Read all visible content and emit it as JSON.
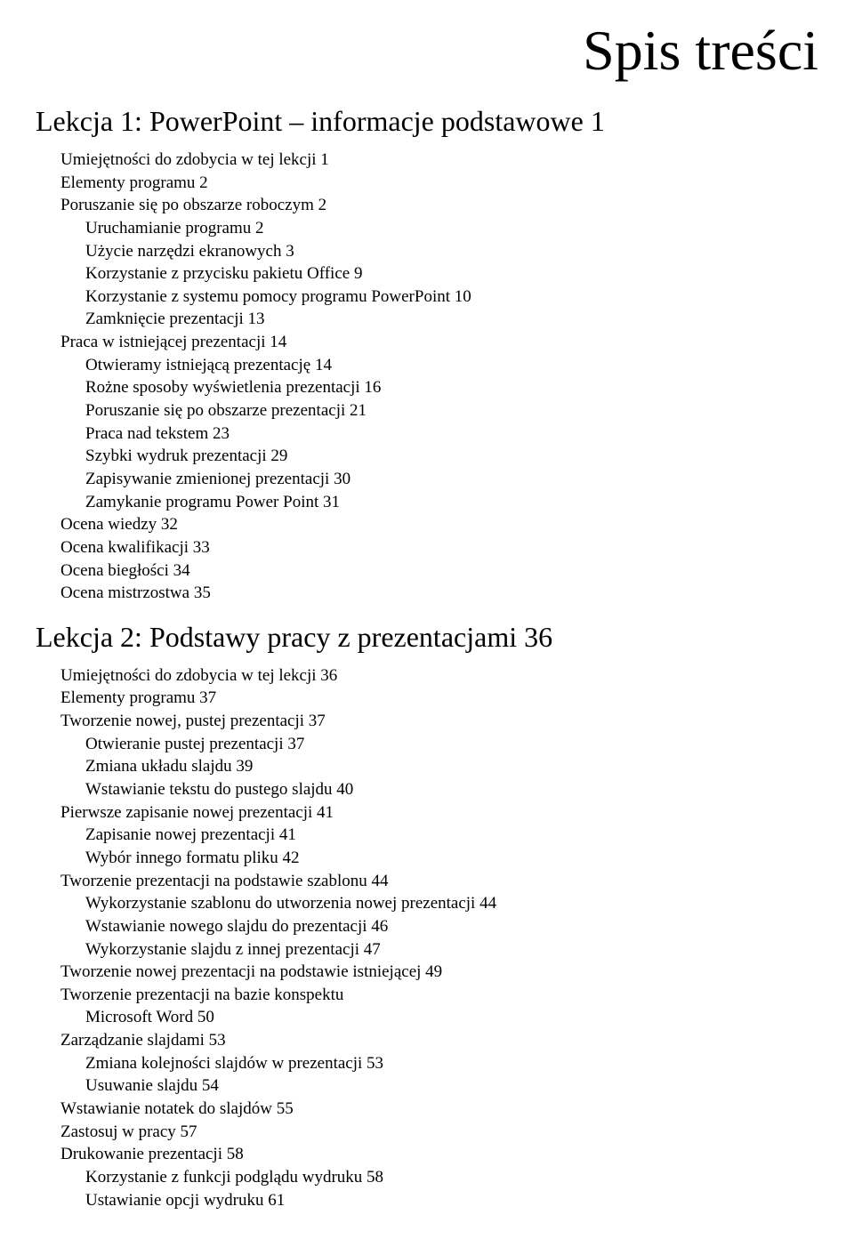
{
  "title": "Spis treści",
  "title_fontsize": 64,
  "lesson_fontsize": 32,
  "entry_fontsize": 19,
  "text_color": "#000000",
  "background_color": "#ffffff",
  "lessons": [
    {
      "heading": "Lekcja 1:  PowerPoint – informacje podstawowe   1",
      "entries": [
        {
          "lvl": 0,
          "text": "Umiejętności do zdobycia w tej lekcji   1"
        },
        {
          "lvl": 0,
          "text": "Elementy programu   2"
        },
        {
          "lvl": 0,
          "text": "Poruszanie się po obszarze roboczym   2"
        },
        {
          "lvl": 1,
          "text": "Uruchamianie programu   2"
        },
        {
          "lvl": 1,
          "text": "Użycie narzędzi ekranowych   3"
        },
        {
          "lvl": 1,
          "text": "Korzystanie z przycisku pakietu Office   9"
        },
        {
          "lvl": 1,
          "text": "Korzystanie z systemu pomocy programu PowerPoint   10"
        },
        {
          "lvl": 1,
          "text": "Zamknięcie prezentacji   13"
        },
        {
          "lvl": 0,
          "text": "Praca w istniejącej prezentacji   14"
        },
        {
          "lvl": 1,
          "text": "Otwieramy istniejącą prezentację   14"
        },
        {
          "lvl": 1,
          "text": "Rożne sposoby wyświetlenia prezentacji   16"
        },
        {
          "lvl": 1,
          "text": "Poruszanie się po obszarze prezentacji   21"
        },
        {
          "lvl": 1,
          "text": "Praca nad tekstem   23"
        },
        {
          "lvl": 1,
          "text": "Szybki wydruk prezentacji   29"
        },
        {
          "lvl": 1,
          "text": "Zapisywanie zmienionej prezentacji   30"
        },
        {
          "lvl": 1,
          "text": "Zamykanie programu Power Point   31"
        },
        {
          "lvl": 0,
          "text": "Ocena wiedzy   32"
        },
        {
          "lvl": 0,
          "text": "Ocena kwalifikacji   33"
        },
        {
          "lvl": 0,
          "text": "Ocena biegłości   34"
        },
        {
          "lvl": 0,
          "text": "Ocena mistrzostwa   35"
        }
      ]
    },
    {
      "heading": "Lekcja 2:  Podstawy pracy z prezentacjami   36",
      "entries": [
        {
          "lvl": 0,
          "text": "Umiejętności do zdobycia w tej lekcji   36"
        },
        {
          "lvl": 0,
          "text": "Elementy programu   37"
        },
        {
          "lvl": 0,
          "text": "Tworzenie nowej, pustej prezentacji   37"
        },
        {
          "lvl": 1,
          "text": "Otwieranie pustej prezentacji   37"
        },
        {
          "lvl": 1,
          "text": "Zmiana układu slajdu   39"
        },
        {
          "lvl": 1,
          "text": "Wstawianie tekstu do pustego slajdu   40"
        },
        {
          "lvl": 0,
          "text": "Pierwsze zapisanie nowej prezentacji   41"
        },
        {
          "lvl": 1,
          "text": "Zapisanie nowej prezentacji   41"
        },
        {
          "lvl": 1,
          "text": "Wybór innego formatu pliku   42"
        },
        {
          "lvl": 0,
          "text": "Tworzenie prezentacji na podstawie szablonu   44"
        },
        {
          "lvl": 1,
          "text": "Wykorzystanie szablonu do utworzenia nowej prezentacji   44"
        },
        {
          "lvl": 1,
          "text": "Wstawianie nowego slajdu do prezentacji   46"
        },
        {
          "lvl": 1,
          "text": "Wykorzystanie slajdu z innej prezentacji   47"
        },
        {
          "lvl": 0,
          "text": "Tworzenie nowej prezentacji na podstawie istniejącej   49"
        },
        {
          "lvl": 0,
          "text": "Tworzenie prezentacji na bazie konspektu"
        },
        {
          "lvl": 1,
          "text": "Microsoft Word   50"
        },
        {
          "lvl": 0,
          "text": "Zarządzanie slajdami   53"
        },
        {
          "lvl": 1,
          "text": "Zmiana kolejności slajdów w prezentacji   53"
        },
        {
          "lvl": 1,
          "text": "Usuwanie slajdu   54"
        },
        {
          "lvl": 0,
          "text": "Wstawianie notatek do slajdów   55"
        },
        {
          "lvl": 0,
          "text": "Zastosuj w pracy   57"
        },
        {
          "lvl": 0,
          "text": "Drukowanie prezentacji   58"
        },
        {
          "lvl": 1,
          "text": "Korzystanie z funkcji podglądu wydruku   58"
        },
        {
          "lvl": 1,
          "text": "Ustawianie opcji wydruku   61"
        }
      ]
    }
  ]
}
